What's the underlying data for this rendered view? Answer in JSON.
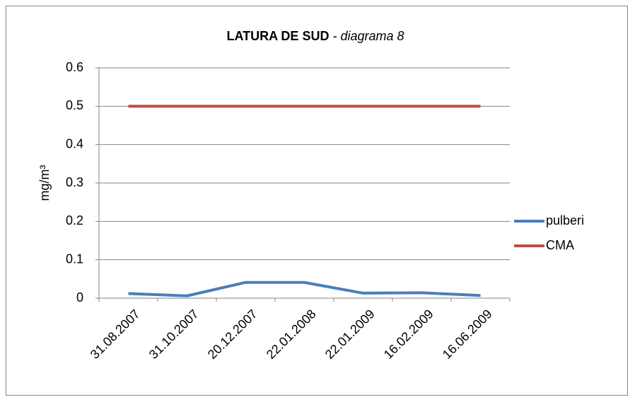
{
  "chart_data": {
    "type": "line",
    "title": "LATURA DE SUD",
    "subtitle": "- diagrama 8",
    "y_label": "mg/m³",
    "categories": [
      "31.08.2007",
      "31.10.2007",
      "20.12.2007",
      "22.01.2008",
      "22.01.2009",
      "16.02.2009",
      "16.06.2009"
    ],
    "series": [
      {
        "name": "pulberi",
        "color": "#4a7ebb",
        "values": [
          0.012,
          0.006,
          0.041,
          0.041,
          0.013,
          0.014,
          0.007
        ]
      },
      {
        "name": "CMA",
        "color": "#be4b48",
        "values": [
          0.5,
          0.5,
          0.5,
          0.5,
          0.5,
          0.5,
          0.5
        ]
      }
    ],
    "ylim": [
      0,
      0.6
    ],
    "yticks": [
      0,
      0.1,
      0.2,
      0.3,
      0.4,
      0.5,
      0.6
    ],
    "grid": true,
    "legend": "right"
  }
}
